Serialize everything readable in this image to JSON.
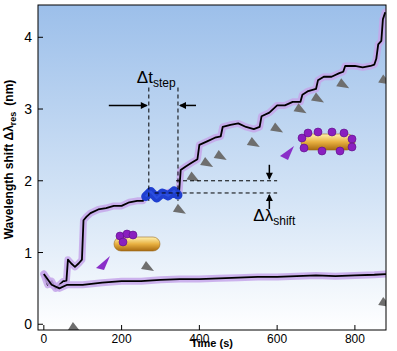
{
  "chart_data": {
    "type": "line",
    "x_label": "Time  (s)",
    "y_label": "Wavelength shift Δλ",
    "y_label_sub": "res",
    "y_unit": "(nm)",
    "xlim": [
      -15,
      880
    ],
    "ylim": [
      -0.08,
      4.45
    ],
    "xticks": [
      0,
      200,
      400,
      600,
      800
    ],
    "yticks": [
      0,
      1,
      2,
      3,
      4
    ],
    "grid": false,
    "series": [
      {
        "color": "#000000",
        "x": [
          0,
          10,
          20,
          30,
          40,
          50,
          58,
          62,
          70,
          80,
          90,
          98,
          102,
          110,
          120,
          140,
          160,
          180,
          200,
          220,
          240,
          255,
          262,
          280,
          300,
          320,
          340,
          348,
          352,
          365,
          380,
          395,
          400,
          420,
          440,
          455,
          460,
          480,
          500,
          520,
          540,
          555,
          560,
          580,
          600,
          620,
          640,
          660,
          665,
          680,
          700,
          705,
          720,
          740,
          760,
          770,
          775,
          800,
          820,
          840,
          850,
          855,
          860,
          868,
          872,
          878
        ],
        "values": [
          0.7,
          0.55,
          0.6,
          0.5,
          0.55,
          0.6,
          0.6,
          0.9,
          0.85,
          0.8,
          0.85,
          0.9,
          1.45,
          1.5,
          1.55,
          1.6,
          1.62,
          1.65,
          1.65,
          1.7,
          1.72,
          1.72,
          1.8,
          1.82,
          1.8,
          1.84,
          1.82,
          1.85,
          2.15,
          2.2,
          2.25,
          2.3,
          2.5,
          2.55,
          2.6,
          2.62,
          2.75,
          2.78,
          2.8,
          2.75,
          2.72,
          2.75,
          2.9,
          2.95,
          3.05,
          3.05,
          3.1,
          3.1,
          3.2,
          3.25,
          3.28,
          3.4,
          3.45,
          3.45,
          3.5,
          3.52,
          3.6,
          3.6,
          3.58,
          3.6,
          3.62,
          3.7,
          3.9,
          3.95,
          4.25,
          4.35
        ]
      },
      {
        "color": "#000000",
        "x": [
          0,
          20,
          40,
          60,
          100,
          150,
          200,
          250,
          300,
          350,
          400,
          450,
          500,
          550,
          600,
          650,
          700,
          750,
          800,
          850,
          880
        ],
        "values": [
          0.7,
          0.55,
          0.5,
          0.55,
          0.55,
          0.58,
          0.6,
          0.6,
          0.62,
          0.63,
          0.63,
          0.64,
          0.65,
          0.66,
          0.66,
          0.67,
          0.68,
          0.67,
          0.68,
          0.69,
          0.7
        ]
      },
      {
        "color": "#1f3fd0",
        "x": [
          262,
          275,
          290,
          305,
          320,
          335,
          345
        ],
        "values": [
          1.78,
          1.85,
          1.76,
          1.83,
          1.79,
          1.86,
          1.8
        ]
      }
    ],
    "annotations": [
      {
        "text": "Δt",
        "sub": "step",
        "x": [
          270,
          345
        ]
      },
      {
        "text": "Δλ",
        "sub": "shift",
        "y": [
          1.83,
          2.0
        ]
      }
    ],
    "step_markers": {
      "x": [
        80,
        268,
        350,
        385,
        420,
        455,
        540,
        600,
        660,
        705,
        770,
        878,
        878
      ],
      "y": [
        0.1,
        0.95,
        1.75,
        2.2,
        2.4,
        2.5,
        2.68,
        2.88,
        3.15,
        3.3,
        3.5,
        3.55,
        0.45
      ]
    }
  }
}
